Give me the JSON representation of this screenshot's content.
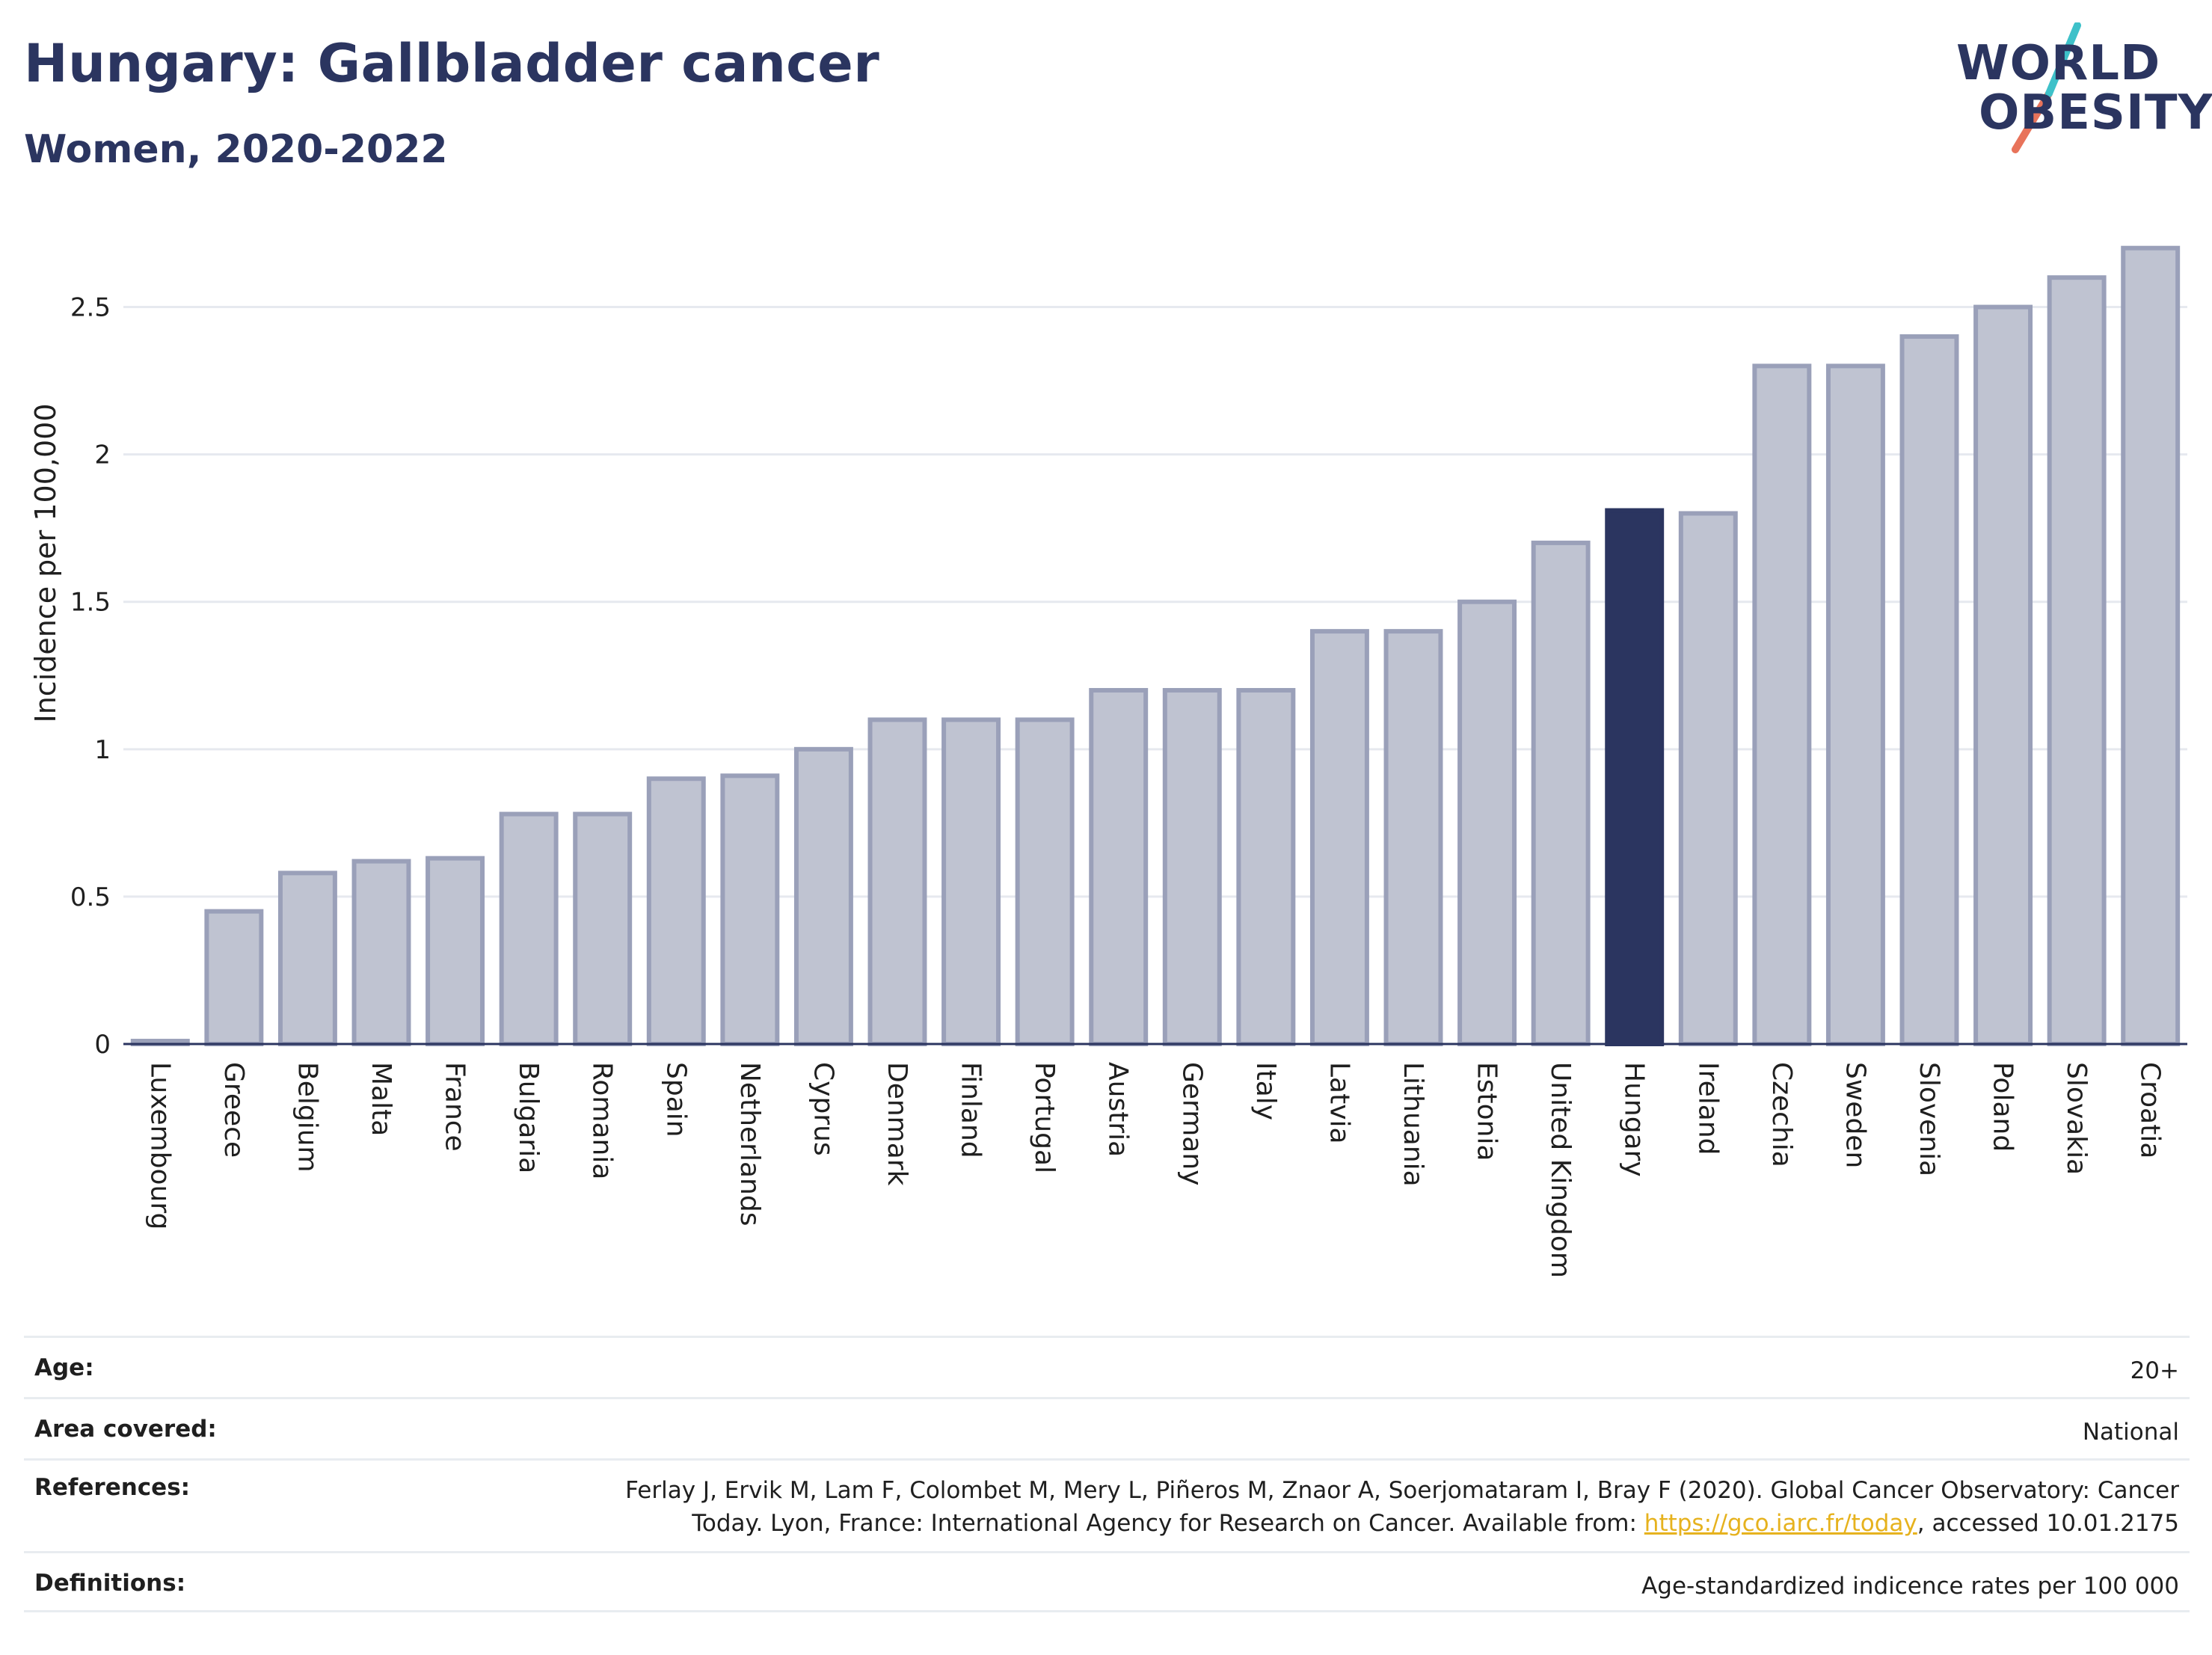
{
  "header": {
    "title": "Hungary: Gallbladder cancer",
    "subtitle": "Women, 2020-2022"
  },
  "logo": {
    "line1": "WORLD",
    "line2": "OBESITY",
    "accent_teal": "#3ec1c9",
    "accent_red": "#e8735a"
  },
  "colors": {
    "bar": "#bfc3d1",
    "bar_border": "#9aa0b9",
    "highlight": "#2b3560",
    "grid": "#e6e9ef",
    "axis": "#2b3560"
  },
  "chart_data": {
    "type": "bar",
    "ylabel": "Incidence per 100,000",
    "xlabel": "",
    "ylim": [
      0,
      2.75
    ],
    "yticks": [
      0,
      0.5,
      1,
      1.5,
      2,
      2.5
    ],
    "ytick_labels": [
      "0",
      "0.5",
      "1",
      "1.5",
      "2",
      "2.5"
    ],
    "highlight": "Hungary",
    "grid": true,
    "categories": [
      "Luxembourg",
      "Greece",
      "Belgium",
      "Malta",
      "France",
      "Bulgaria",
      "Romania",
      "Spain",
      "Netherlands",
      "Cyprus",
      "Denmark",
      "Finland",
      "Portugal",
      "Austria",
      "Germany",
      "Italy",
      "Latvia",
      "Lithuania",
      "Estonia",
      "United Kingdom",
      "Hungary",
      "Ireland",
      "Czechia",
      "Sweden",
      "Slovenia",
      "Poland",
      "Slovakia",
      "Croatia"
    ],
    "values": [
      0.01,
      0.45,
      0.58,
      0.62,
      0.63,
      0.78,
      0.78,
      0.9,
      0.91,
      1.0,
      1.1,
      1.1,
      1.1,
      1.2,
      1.2,
      1.2,
      1.4,
      1.4,
      1.5,
      1.7,
      1.81,
      1.8,
      2.3,
      2.3,
      2.4,
      2.5,
      2.6,
      2.7
    ]
  },
  "meta": {
    "age_label": "Age:",
    "age_value": "20+",
    "area_label": "Area covered:",
    "area_value": "National",
    "references_label": "References:",
    "references_line1": "Ferlay J, Ervik M, Lam F, Colombet M, Mery L, Piñeros M, Znaor A, Soerjomataram I, Bray F (2020). Global Cancer Observatory: Cancer",
    "references_line2a": "Today. Lyon, France: International Agency for Research on Cancer. Available from: ",
    "references_link": "https://gco.iarc.fr/today",
    "references_line2b": ", accessed 10.01.2175",
    "definitions_label": "Definitions:",
    "definitions_value": "Age-standardized indicence rates per 100 000"
  }
}
